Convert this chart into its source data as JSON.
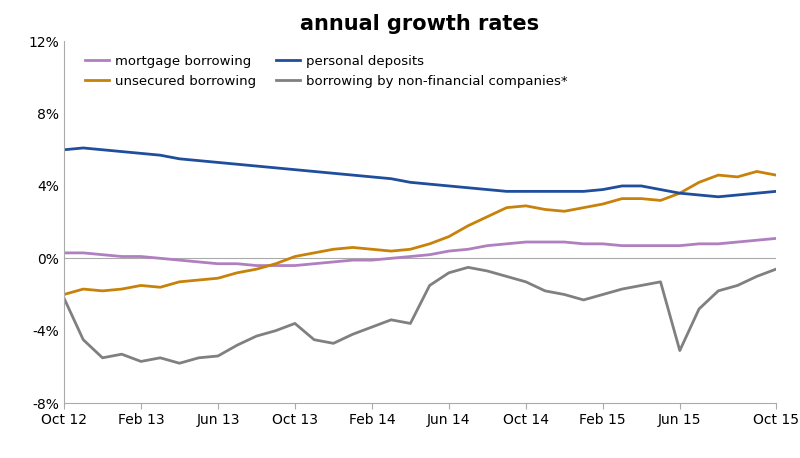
{
  "title": "annual growth rates",
  "title_fontsize": 15,
  "title_fontweight": "bold",
  "background_color": "#ffffff",
  "legend_entries": [
    "mortgage borrowing",
    "unsecured borrowing",
    "personal deposits",
    "borrowing by non-financial companies*"
  ],
  "line_colors": {
    "mortgage": "#b07fc0",
    "unsecured": "#c8820a",
    "deposits": "#1f4e9c",
    "non_financial": "#808080"
  },
  "ylim": [
    -8,
    12
  ],
  "yticks": [
    -8,
    -4,
    0,
    4,
    8,
    12
  ],
  "ytick_labels": [
    "-8%",
    "-4%",
    "0%",
    "4%",
    "8%",
    "12%"
  ],
  "xtick_labels": [
    "Oct 12",
    "Feb 13",
    "Jun 13",
    "Oct 13",
    "Feb 14",
    "Jun 14",
    "Oct 14",
    "Feb 15",
    "Jun 15",
    "Oct 15"
  ],
  "mortgage_borrowing": [
    0.3,
    0.3,
    0.2,
    0.1,
    0.1,
    0.0,
    -0.1,
    -0.2,
    -0.3,
    -0.3,
    -0.4,
    -0.4,
    -0.4,
    -0.3,
    -0.2,
    -0.1,
    -0.1,
    0.0,
    0.1,
    0.2,
    0.4,
    0.5,
    0.7,
    0.8,
    0.9,
    0.9,
    0.9,
    0.8,
    0.8,
    0.7,
    0.7,
    0.7,
    0.7,
    0.8,
    0.8,
    0.9,
    1.0,
    1.1
  ],
  "unsecured_borrowing": [
    -2.0,
    -1.7,
    -1.8,
    -1.7,
    -1.5,
    -1.6,
    -1.3,
    -1.2,
    -1.1,
    -0.8,
    -0.6,
    -0.3,
    0.1,
    0.3,
    0.5,
    0.6,
    0.5,
    0.4,
    0.5,
    0.8,
    1.2,
    1.8,
    2.3,
    2.8,
    2.9,
    2.7,
    2.6,
    2.8,
    3.0,
    3.3,
    3.3,
    3.2,
    3.6,
    4.2,
    4.6,
    4.5,
    4.8,
    4.6
  ],
  "personal_deposits": [
    6.0,
    6.1,
    6.0,
    5.9,
    5.8,
    5.7,
    5.5,
    5.4,
    5.3,
    5.2,
    5.1,
    5.0,
    4.9,
    4.8,
    4.7,
    4.6,
    4.5,
    4.4,
    4.2,
    4.1,
    4.0,
    3.9,
    3.8,
    3.7,
    3.7,
    3.7,
    3.7,
    3.7,
    3.8,
    4.0,
    4.0,
    3.8,
    3.6,
    3.5,
    3.4,
    3.5,
    3.6,
    3.7
  ],
  "non_financial_borrowing": [
    -2.2,
    -4.5,
    -5.5,
    -5.3,
    -5.7,
    -5.5,
    -5.8,
    -5.5,
    -5.4,
    -4.8,
    -4.3,
    -4.0,
    -3.6,
    -4.5,
    -4.7,
    -4.2,
    -3.8,
    -3.4,
    -3.6,
    -1.5,
    -0.8,
    -0.5,
    -0.7,
    -1.0,
    -1.3,
    -1.8,
    -2.0,
    -2.3,
    -2.0,
    -1.7,
    -1.5,
    -1.3,
    -5.1,
    -2.8,
    -1.8,
    -1.5,
    -1.0,
    -0.6
  ],
  "n_points": 38
}
